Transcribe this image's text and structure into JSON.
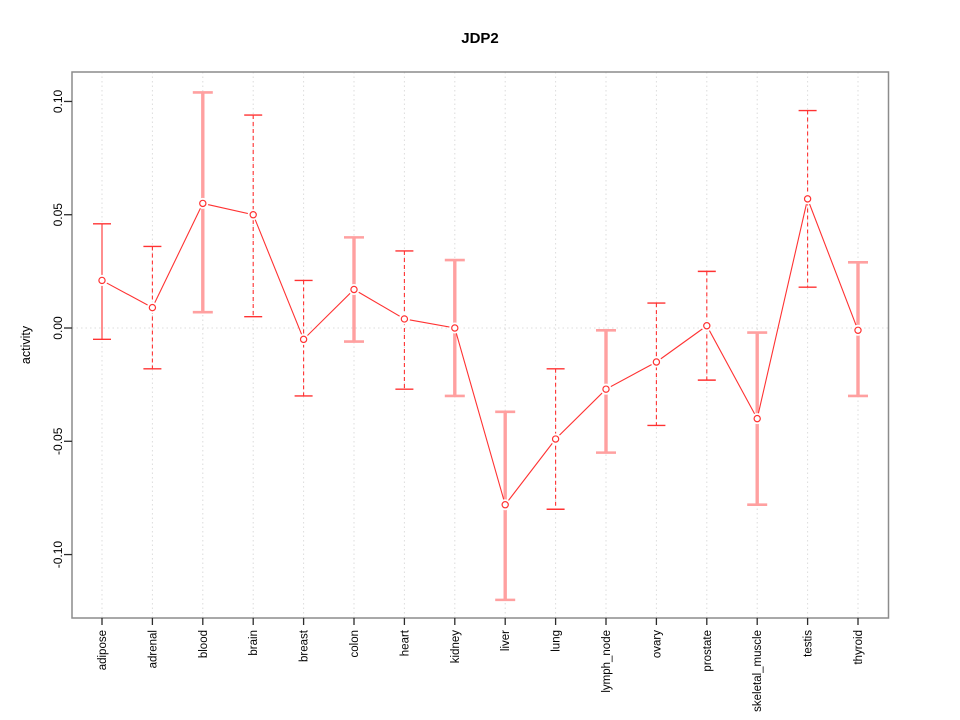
{
  "chart_data": {
    "type": "line",
    "title": "JDP2",
    "xlabel": "",
    "ylabel": "activity",
    "legend": "none",
    "categories": [
      "adipose",
      "adrenal",
      "blood",
      "brain",
      "breast",
      "colon",
      "heart",
      "kidney",
      "liver",
      "lung",
      "lymph_node",
      "ovary",
      "prostate",
      "skeletal_muscle",
      "testis",
      "thyroid"
    ],
    "series": [
      {
        "name": "activity",
        "values": [
          0.021,
          0.009,
          0.055,
          0.05,
          -0.005,
          0.017,
          0.004,
          0.0,
          -0.078,
          -0.049,
          -0.027,
          -0.015,
          0.001,
          -0.04,
          0.057,
          -0.001
        ],
        "upper": [
          0.046,
          0.036,
          0.104,
          0.094,
          0.021,
          0.04,
          0.034,
          0.03,
          -0.037,
          -0.018,
          -0.001,
          0.011,
          0.025,
          -0.002,
          0.096,
          0.029
        ],
        "lower": [
          -0.005,
          -0.018,
          0.007,
          0.005,
          -0.03,
          -0.006,
          -0.027,
          -0.03,
          -0.12,
          -0.08,
          -0.055,
          -0.043,
          -0.023,
          -0.078,
          0.018,
          -0.03
        ],
        "bar_styles": [
          "solid",
          "dashed",
          "thick",
          "dashed",
          "dashed",
          "thick",
          "dashed",
          "thick",
          "thick",
          "dashed",
          "thick",
          "dashed",
          "dashed",
          "thick",
          "dashed",
          "thick"
        ]
      }
    ],
    "ytick_labels": [
      "0.10",
      "0.05",
      "0.00",
      "-0.05",
      "-0.10"
    ],
    "ytick_values": [
      0.1,
      0.05,
      0.0,
      -0.05,
      -0.1
    ],
    "ylim": [
      -0.128,
      0.113
    ],
    "grid": {
      "vertical_dotted_per_category": true,
      "zero_line_dotted": true
    },
    "marker": "open-circle",
    "colors": {
      "point": "#ff3232",
      "line": "#ff3232",
      "error_bar_thin": "#ff3232",
      "error_bar_thick": "#ffa0a0",
      "grid": "#dcdcdc",
      "frame": "#8c8c8c",
      "tick": "#2b2b2b",
      "text": "#000000",
      "background": "#ffffff"
    }
  }
}
